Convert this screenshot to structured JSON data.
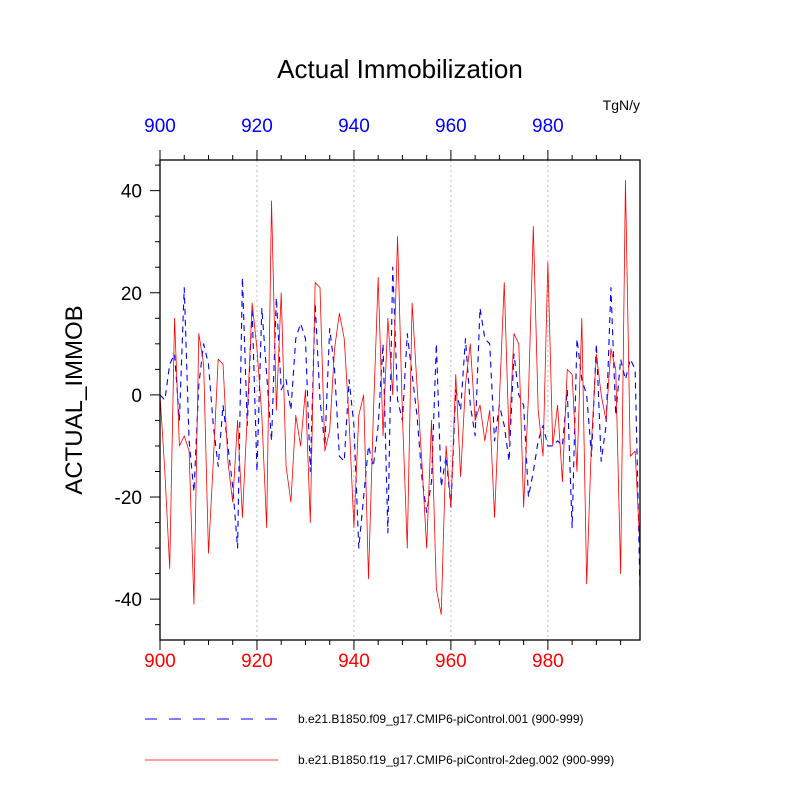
{
  "chart_data": {
    "type": "line",
    "title": "Actual Immobilization",
    "units": "TgN/y",
    "ylabel": "ACTUAL_IMMOB",
    "xlabel": "",
    "xlim": [
      900,
      999
    ],
    "ylim": [
      -48,
      46
    ],
    "yticks": [
      -40,
      -20,
      0,
      20,
      40
    ],
    "ytick_labels": [
      "-40",
      "-20",
      "0",
      "20",
      "40"
    ],
    "xticks": [
      900,
      920,
      940,
      960,
      980
    ],
    "top_xtick_labels": [
      "900",
      "920",
      "940",
      "960",
      "980"
    ],
    "bottom_xtick_labels": [
      "900",
      "920",
      "940",
      "960",
      "980"
    ],
    "grid": "vertical dotted at major x ticks",
    "x": [
      900,
      901,
      902,
      903,
      904,
      905,
      906,
      907,
      908,
      909,
      910,
      911,
      912,
      913,
      914,
      915,
      916,
      917,
      918,
      919,
      920,
      921,
      922,
      923,
      924,
      925,
      926,
      927,
      928,
      929,
      930,
      931,
      932,
      933,
      934,
      935,
      936,
      937,
      938,
      939,
      940,
      941,
      942,
      943,
      944,
      945,
      946,
      947,
      948,
      949,
      950,
      951,
      952,
      953,
      954,
      955,
      956,
      957,
      958,
      959,
      960,
      961,
      962,
      963,
      964,
      965,
      966,
      967,
      968,
      969,
      970,
      971,
      972,
      973,
      974,
      975,
      976,
      977,
      978,
      979,
      980,
      981,
      982,
      983,
      984,
      985,
      986,
      987,
      988,
      989,
      990,
      991,
      992,
      993,
      994,
      995,
      996,
      997,
      998,
      999
    ],
    "series": [
      {
        "name": "b.e21.B1850.f09_g17.CMIP6-piControl.001 (900-999)",
        "color": "#0000ff",
        "style": "dashed",
        "values": [
          0,
          -1,
          6,
          8,
          -5,
          21,
          -9,
          -19,
          2,
          10,
          6,
          -6,
          -14,
          -2,
          -10,
          -18,
          -30,
          23,
          -6,
          17,
          -15,
          17,
          4,
          -9,
          19,
          1,
          3,
          -3,
          11,
          14,
          11,
          -15,
          18,
          -1,
          -10,
          13,
          5,
          -12,
          -13,
          3,
          -6,
          -30,
          -20,
          -10,
          -14,
          -6,
          10,
          -27,
          25,
          -1,
          -5,
          12,
          4,
          -4,
          -16,
          -23,
          -17,
          10,
          -18,
          -12,
          -22,
          1,
          -3,
          11,
          -2,
          -8,
          17,
          11,
          10,
          -9,
          -2,
          -6,
          -13,
          8,
          0,
          -2,
          -20,
          -15,
          -9,
          -6,
          -10,
          -10,
          -9,
          -10,
          1,
          -26,
          11,
          3,
          0,
          -12,
          10,
          -13,
          -6,
          21,
          -4,
          7,
          3,
          7,
          5,
          -38
        ],
        "dash": "6,5",
        "width": 1.1
      },
      {
        "name": "b.e21.B1850.f19_g17.CMIP6-piControl-2deg.002 (900-999)",
        "color": "#ff0000",
        "style": "solid",
        "values": [
          0,
          -15,
          -34,
          15,
          -10,
          -8,
          -11,
          -41,
          12,
          6,
          -31,
          -13,
          7,
          6,
          -13,
          -21,
          -5,
          -24,
          -4,
          18,
          9,
          -4,
          -26,
          38,
          -3,
          20,
          -14,
          -21,
          -4,
          -10,
          1,
          -25,
          22,
          21,
          -11,
          -7,
          9,
          16,
          11,
          -5,
          -26,
          -4,
          0,
          -36,
          -4,
          23,
          -8,
          15,
          0,
          31,
          -4,
          -30,
          18,
          2,
          -13,
          -30,
          -5,
          -38,
          -43,
          -10,
          -22,
          4,
          -16,
          2,
          10,
          -5,
          -2,
          -9,
          -3,
          -24,
          -1,
          22,
          -9,
          12,
          10,
          -22,
          0,
          33,
          -3,
          -12,
          26,
          -10,
          -2,
          -17,
          5,
          4,
          -15,
          15,
          -37,
          -9,
          8,
          0,
          -5,
          9,
          5,
          -35,
          42,
          -12,
          -11,
          -30
        ],
        "dash": "",
        "width": 0.8
      }
    ]
  }
}
